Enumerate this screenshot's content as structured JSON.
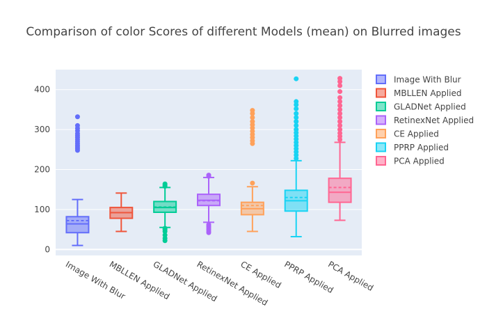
{
  "chart_data": {
    "type": "box",
    "title": "Comparison of color Scores of different Models (mean) on Blurred images",
    "xlabel": "",
    "ylabel": "",
    "ylim": [
      -15,
      450
    ],
    "yticks": [
      0,
      100,
      200,
      300,
      400
    ],
    "grid": true,
    "legend_position": "right",
    "series": [
      {
        "name": "Image With Blur",
        "color": "#636efa",
        "whisker_low": 10,
        "q1": 42,
        "median": 64,
        "q3": 82,
        "whisker_high": 125,
        "mean": 72,
        "outliers": [
          248,
          252,
          256,
          260,
          265,
          270,
          275,
          280,
          285,
          290,
          297,
          303,
          310,
          332
        ]
      },
      {
        "name": "MBLLEN Applied",
        "color": "#ef553b",
        "whisker_low": 45,
        "q1": 78,
        "median": 92,
        "q3": 105,
        "whisker_high": 141,
        "mean": 92,
        "outliers": []
      },
      {
        "name": "GLADNet Applied",
        "color": "#00cc96",
        "whisker_low": 55,
        "q1": 93,
        "median": 105,
        "q3": 120,
        "whisker_high": 155,
        "mean": 106,
        "outliers": [
          22,
          28,
          36,
          45,
          50,
          53,
          158,
          161,
          164
        ]
      },
      {
        "name": "RetinexNet Applied",
        "color": "#ab63fa",
        "whisker_low": 68,
        "q1": 110,
        "median": 123,
        "q3": 138,
        "whisker_high": 180,
        "mean": 122,
        "outliers": [
          42,
          46,
          50,
          54,
          58,
          62,
          183,
          186
        ]
      },
      {
        "name": "CE Applied",
        "color": "#ffa15a",
        "whisker_low": 45,
        "q1": 87,
        "median": 102,
        "q3": 118,
        "whisker_high": 157,
        "mean": 110,
        "outliers": [
          166,
          265,
          272,
          280,
          288,
          296,
          304,
          312,
          320,
          330,
          340,
          348
        ]
      },
      {
        "name": "PPRP Applied",
        "color": "#19d3f3",
        "whisker_low": 32,
        "q1": 96,
        "median": 122,
        "q3": 148,
        "whisker_high": 222,
        "mean": 130,
        "outliers": [
          228,
          236,
          244,
          252,
          260,
          268,
          276,
          284,
          292,
          300,
          310,
          320,
          330,
          340,
          352,
          362,
          370,
          427
        ]
      },
      {
        "name": "PCA Applied",
        "color": "#ff6692",
        "whisker_low": 73,
        "q1": 118,
        "median": 143,
        "q3": 178,
        "whisker_high": 268,
        "mean": 155,
        "outliers": [
          275,
          283,
          291,
          300,
          310,
          320,
          330,
          340,
          350,
          360,
          370,
          380,
          395,
          410,
          420,
          428
        ]
      }
    ]
  }
}
